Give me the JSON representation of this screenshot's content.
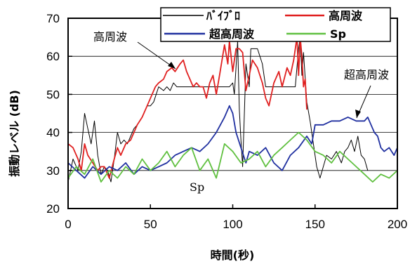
{
  "chart_data": {
    "type": "line",
    "xlabel": "時間(秒)",
    "ylabel": "振動レベル (dB)",
    "xlim": [
      0,
      200
    ],
    "ylim": [
      20,
      70
    ],
    "xticks": [
      0,
      50,
      100,
      150,
      200
    ],
    "yticks": [
      20,
      30,
      40,
      50,
      60,
      70
    ],
    "grid": "horizontal",
    "legend_position": "top-right",
    "series": [
      {
        "name": "ﾊﾞｲﾌﾞﾛ",
        "color": "#000000",
        "x": [
          0,
          3,
          6,
          8,
          10,
          12,
          14,
          16,
          18,
          20,
          22,
          24,
          26,
          28,
          30,
          32,
          34,
          36,
          38,
          40,
          42,
          45,
          48,
          50,
          52,
          55,
          58,
          60,
          62,
          64,
          66,
          68,
          70,
          75,
          80,
          85,
          90,
          95,
          98,
          100,
          101,
          103,
          104,
          105,
          106,
          107,
          108,
          110,
          111,
          113,
          115,
          118,
          120,
          123,
          125,
          130,
          135,
          138,
          140,
          141,
          142,
          143,
          145,
          147,
          149,
          151,
          153,
          155,
          157,
          160,
          163,
          166,
          168,
          170,
          172,
          174,
          176,
          178,
          180,
          182
        ],
        "values": [
          27,
          33,
          30,
          35,
          45,
          41,
          37,
          43,
          34,
          29,
          31,
          30,
          27,
          33,
          40,
          37,
          38,
          37,
          39,
          41,
          42,
          44,
          47,
          47,
          48,
          52,
          51,
          52,
          51,
          53,
          52,
          52,
          52,
          52,
          52,
          52,
          52,
          52,
          52,
          53,
          50,
          64,
          46,
          38,
          31,
          44,
          58,
          52,
          62,
          62,
          62,
          58,
          52,
          52,
          52,
          52,
          52,
          52,
          62,
          65,
          55,
          61,
          48,
          43,
          37,
          31,
          28,
          31,
          34,
          33,
          35,
          32,
          35,
          36,
          38,
          35,
          39,
          34,
          33,
          30
        ]
      },
      {
        "name": "高周波",
        "color": "#e02020",
        "x": [
          0,
          3,
          6,
          8,
          10,
          12,
          15,
          18,
          20,
          22,
          25,
          28,
          30,
          32,
          35,
          38,
          40,
          42,
          45,
          48,
          50,
          53,
          55,
          58,
          60,
          63,
          65,
          68,
          70,
          72,
          74,
          76,
          78,
          80,
          82,
          84,
          86,
          88,
          90,
          92,
          95,
          97,
          98,
          100,
          102,
          104,
          106,
          108,
          110,
          112,
          115,
          118,
          120,
          122,
          125,
          128,
          130,
          133,
          135,
          137,
          139,
          140,
          141,
          142,
          143,
          144,
          145
        ],
        "values": [
          37,
          36,
          33,
          30,
          37,
          34,
          32,
          30,
          31,
          31,
          28,
          33,
          36,
          34,
          37,
          38,
          40,
          42,
          44,
          47,
          49,
          52,
          53,
          54,
          56,
          57,
          56,
          58,
          59,
          56,
          54,
          52,
          53,
          52,
          52,
          49,
          53,
          55,
          50,
          55,
          63,
          58,
          64,
          56,
          62,
          62,
          61,
          51,
          55,
          59,
          57,
          53,
          49,
          47,
          53,
          56,
          52,
          57,
          55,
          59,
          65,
          55,
          65,
          60,
          52,
          54,
          46
        ]
      },
      {
        "name": "超高周波",
        "color": "#2030a0",
        "x": [
          0,
          5,
          10,
          15,
          20,
          25,
          30,
          35,
          40,
          45,
          50,
          55,
          60,
          65,
          70,
          75,
          80,
          85,
          90,
          95,
          98,
          100,
          102,
          105,
          108,
          110,
          115,
          120,
          125,
          130,
          135,
          140,
          145,
          148,
          150,
          155,
          160,
          165,
          170,
          175,
          180,
          182,
          184,
          186,
          188,
          190,
          192,
          195,
          198,
          200
        ],
        "values": [
          32,
          30,
          28,
          31,
          29,
          31,
          30,
          32,
          29,
          31,
          30,
          31,
          32,
          34,
          35,
          36,
          35,
          37,
          40,
          44,
          47,
          45,
          40,
          36,
          32,
          35,
          34,
          36,
          32,
          30,
          34,
          36,
          39,
          37,
          42,
          42,
          43,
          43,
          44,
          43,
          43,
          44,
          42,
          40,
          39,
          36,
          35,
          36,
          34,
          36
        ]
      },
      {
        "name": "Sp",
        "color": "#60c040",
        "x": [
          0,
          5,
          10,
          15,
          20,
          25,
          30,
          35,
          40,
          45,
          50,
          55,
          60,
          65,
          70,
          75,
          80,
          85,
          90,
          95,
          100,
          105,
          110,
          115,
          120,
          125,
          130,
          135,
          140,
          145,
          150,
          155,
          160,
          165,
          170,
          175,
          180,
          185,
          190,
          195,
          200
        ],
        "values": [
          28,
          31,
          29,
          33,
          27,
          30,
          28,
          31,
          29,
          33,
          30,
          32,
          35,
          31,
          34,
          36,
          30,
          33,
          28,
          37,
          35,
          32,
          33,
          35,
          31,
          34,
          36,
          38,
          40,
          38,
          35,
          34,
          32,
          35,
          33,
          31,
          29,
          27,
          29,
          28,
          30
        ]
      }
    ],
    "annotations": [
      {
        "text": "高周波",
        "x": 55,
        "y": 60
      },
      {
        "text": "超高周波",
        "x": 210,
        "y": 47
      },
      {
        "text": "Sp",
        "x": 90,
        "y": 26
      }
    ]
  }
}
